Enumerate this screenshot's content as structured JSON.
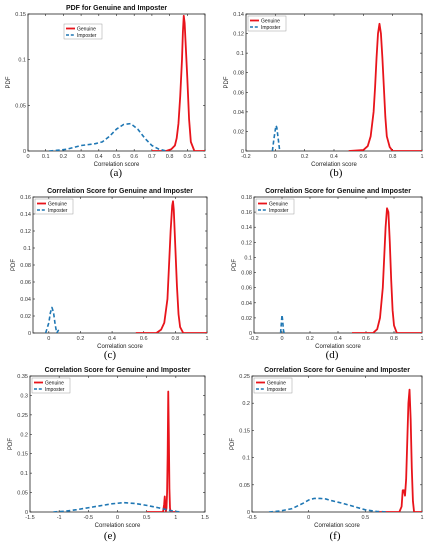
{
  "legend": {
    "genuine": "Genuine",
    "imposter": "Imposter"
  },
  "colors": {
    "genuine": "#e8141b",
    "imposter": "#1f77b4",
    "axis": "#222222",
    "tick_text": "#333333"
  },
  "chart_data": [
    {
      "type": "line",
      "caption": "(a)",
      "title": "PDF for Genuine and Imposter",
      "xlabel": "Correlation score",
      "ylabel": "PDF",
      "xlim": [
        0,
        1
      ],
      "ylim": [
        0,
        0.15
      ],
      "xticks": [
        "0",
        "0.1",
        "0.2",
        "0.3",
        "0.4",
        "0.5",
        "0.6",
        "0.7",
        "0.8",
        "0.9",
        "1"
      ],
      "yticks": [
        "0",
        "0.05",
        "0.1",
        "0.15"
      ],
      "legend_position": "inside-left",
      "series": [
        {
          "name": "Genuine",
          "style": "solid",
          "x": [
            0.7,
            0.78,
            0.81,
            0.83,
            0.84,
            0.85,
            0.86,
            0.87,
            0.875,
            0.88,
            0.885,
            0.89,
            0.9,
            0.91,
            0.92,
            0.94,
            1.0
          ],
          "y": [
            0,
            0,
            0.002,
            0.006,
            0.014,
            0.03,
            0.06,
            0.1,
            0.13,
            0.148,
            0.14,
            0.12,
            0.08,
            0.035,
            0.01,
            0,
            0
          ]
        },
        {
          "name": "Imposter",
          "style": "dashed",
          "x": [
            0.12,
            0.18,
            0.22,
            0.26,
            0.3,
            0.34,
            0.38,
            0.42,
            0.46,
            0.5,
            0.54,
            0.58,
            0.62,
            0.66,
            0.7,
            0.74,
            0.78
          ],
          "y": [
            0,
            0.001,
            0.002,
            0.004,
            0.006,
            0.007,
            0.008,
            0.01,
            0.016,
            0.024,
            0.029,
            0.03,
            0.024,
            0.014,
            0.006,
            0.002,
            0
          ]
        }
      ]
    },
    {
      "type": "line",
      "caption": "(b)",
      "title": "",
      "xlabel": "Correlation score",
      "ylabel": "PDF",
      "xlim": [
        -0.2,
        1
      ],
      "ylim": [
        0,
        0.14
      ],
      "xticks": [
        "-0.2",
        "0",
        "0.2",
        "0.4",
        "0.6",
        "0.8",
        "1"
      ],
      "yticks": [
        "0",
        "0.02",
        "0.04",
        "0.06",
        "0.08",
        "0.1",
        "0.12",
        "0.14"
      ],
      "legend_position": "top-left",
      "series": [
        {
          "name": "Genuine",
          "style": "solid",
          "x": [
            0.5,
            0.6,
            0.63,
            0.65,
            0.67,
            0.68,
            0.69,
            0.7,
            0.71,
            0.72,
            0.73,
            0.74,
            0.75,
            0.76,
            0.78,
            0.8,
            1.0
          ],
          "y": [
            0,
            0.001,
            0.005,
            0.015,
            0.04,
            0.065,
            0.095,
            0.12,
            0.13,
            0.12,
            0.095,
            0.065,
            0.035,
            0.015,
            0.004,
            0,
            0
          ]
        },
        {
          "name": "Imposter",
          "style": "dashed",
          "x": [
            -0.02,
            -0.01,
            0,
            0.005,
            0.01,
            0.02,
            0.03
          ],
          "y": [
            0,
            0.012,
            0.022,
            0.026,
            0.024,
            0.012,
            0
          ]
        }
      ]
    },
    {
      "type": "line",
      "caption": "(c)",
      "title": "Correlation Score for Genuine and Imposter",
      "xlabel": "Correlation score",
      "ylabel": "PDF",
      "xlim": [
        -0.1,
        1
      ],
      "ylim": [
        0,
        0.16
      ],
      "xticks": [
        "0",
        "0.2",
        "0.4",
        "0.6",
        "0.8",
        "1"
      ],
      "yticks": [
        "0",
        "0.02",
        "0.04",
        "0.06",
        "0.08",
        "0.1",
        "0.12",
        "0.14",
        "0.16"
      ],
      "legend_position": "top-left",
      "series": [
        {
          "name": "Genuine",
          "style": "solid",
          "x": [
            0.55,
            0.68,
            0.71,
            0.73,
            0.75,
            0.76,
            0.77,
            0.78,
            0.785,
            0.79,
            0.8,
            0.81,
            0.82,
            0.83,
            0.85,
            1.0
          ],
          "y": [
            0,
            0,
            0.004,
            0.012,
            0.04,
            0.08,
            0.12,
            0.15,
            0.155,
            0.145,
            0.1,
            0.055,
            0.022,
            0.007,
            0,
            0
          ]
        },
        {
          "name": "Imposter",
          "style": "dashed",
          "x": [
            -0.02,
            0,
            0.01,
            0.02,
            0.03,
            0.04,
            0.05,
            0.06,
            0.07
          ],
          "y": [
            0,
            0.012,
            0.024,
            0.03,
            0.024,
            0.01,
            0,
            0.003,
            0
          ]
        }
      ]
    },
    {
      "type": "line",
      "caption": "(d)",
      "title": "Correlation Score for Genuine and Imposter",
      "xlabel": "Correlation score",
      "ylabel": "PDF",
      "xlim": [
        -0.2,
        1
      ],
      "ylim": [
        0,
        0.18
      ],
      "xticks": [
        "-0.2",
        "0",
        "0.2",
        "0.4",
        "0.6",
        "0.8",
        "1"
      ],
      "yticks": [
        "0",
        "0.02",
        "0.04",
        "0.06",
        "0.08",
        "0.1",
        "0.12",
        "0.14",
        "0.16",
        "0.18"
      ],
      "legend_position": "top-left",
      "series": [
        {
          "name": "Genuine",
          "style": "solid",
          "x": [
            0.5,
            0.65,
            0.68,
            0.7,
            0.72,
            0.73,
            0.74,
            0.75,
            0.76,
            0.77,
            0.78,
            0.79,
            0.8,
            0.82,
            1.0
          ],
          "y": [
            0,
            0,
            0.005,
            0.02,
            0.06,
            0.1,
            0.14,
            0.165,
            0.16,
            0.12,
            0.07,
            0.03,
            0.01,
            0,
            0
          ]
        },
        {
          "name": "Imposter",
          "style": "dashed",
          "x": [
            -0.01,
            -0.005,
            0,
            0.005,
            0.01,
            0.015
          ],
          "y": [
            0,
            0.012,
            0.024,
            0.016,
            0.004,
            0
          ]
        }
      ]
    },
    {
      "type": "line",
      "caption": "(e)",
      "title": "Correlation Score for Genuine and Imposter",
      "xlabel": "Correlation score",
      "ylabel": "PDF",
      "xlim": [
        -1.5,
        1.5
      ],
      "ylim": [
        0,
        0.35
      ],
      "xticks": [
        "-1.5",
        "-1",
        "-0.5",
        "0",
        "0.5",
        "1",
        "1.5"
      ],
      "yticks": [
        "0",
        "0.05",
        "0.1",
        "0.15",
        "0.2",
        "0.25",
        "0.3",
        "0.35"
      ],
      "legend_position": "top-left",
      "series": [
        {
          "name": "Genuine",
          "style": "solid",
          "x": [
            0.5,
            0.78,
            0.8,
            0.81,
            0.82,
            0.83,
            0.84,
            0.85,
            0.86,
            0.87,
            0.88,
            0.89,
            0.9,
            0.91,
            0.93,
            1.0
          ],
          "y": [
            0,
            0,
            0.02,
            0.04,
            0.01,
            0.002,
            0.01,
            0.05,
            0.15,
            0.31,
            0.2,
            0.06,
            0.01,
            0.002,
            0,
            0
          ]
        },
        {
          "name": "Imposter",
          "style": "dashed",
          "x": [
            -1.1,
            -0.9,
            -0.7,
            -0.5,
            -0.3,
            -0.1,
            0.1,
            0.3,
            0.5,
            0.7,
            0.9,
            1.0,
            1.1
          ],
          "y": [
            0,
            0.002,
            0.006,
            0.011,
            0.016,
            0.021,
            0.024,
            0.022,
            0.017,
            0.011,
            0.004,
            0.001,
            0
          ]
        }
      ]
    },
    {
      "type": "line",
      "caption": "(f)",
      "title": "Correlation Score for Genuine and Imposter",
      "xlabel": "Correlation score",
      "ylabel": "PDF",
      "xlim": [
        -0.5,
        1
      ],
      "ylim": [
        0,
        0.25
      ],
      "xticks": [
        "-0.5",
        "0",
        "0.5",
        "1"
      ],
      "yticks": [
        "0",
        "0.05",
        "0.1",
        "0.15",
        "0.2",
        "0.25"
      ],
      "legend_position": "top-left",
      "series": [
        {
          "name": "Genuine",
          "style": "solid",
          "x": [
            0.6,
            0.8,
            0.82,
            0.83,
            0.84,
            0.85,
            0.86,
            0.87,
            0.88,
            0.89,
            0.9,
            0.91,
            0.92,
            0.93,
            1.0
          ],
          "y": [
            0,
            0,
            0.01,
            0.04,
            0.04,
            0.03,
            0.06,
            0.13,
            0.2,
            0.225,
            0.17,
            0.08,
            0.02,
            0,
            0
          ]
        },
        {
          "name": "Imposter",
          "style": "dashed",
          "x": [
            -0.35,
            -0.25,
            -0.15,
            -0.05,
            0,
            0.05,
            0.1,
            0.15,
            0.2,
            0.3,
            0.4,
            0.5,
            0.6,
            0.7
          ],
          "y": [
            0,
            0.002,
            0.006,
            0.016,
            0.022,
            0.025,
            0.025,
            0.024,
            0.021,
            0.016,
            0.01,
            0.004,
            0.001,
            0
          ]
        }
      ]
    }
  ]
}
